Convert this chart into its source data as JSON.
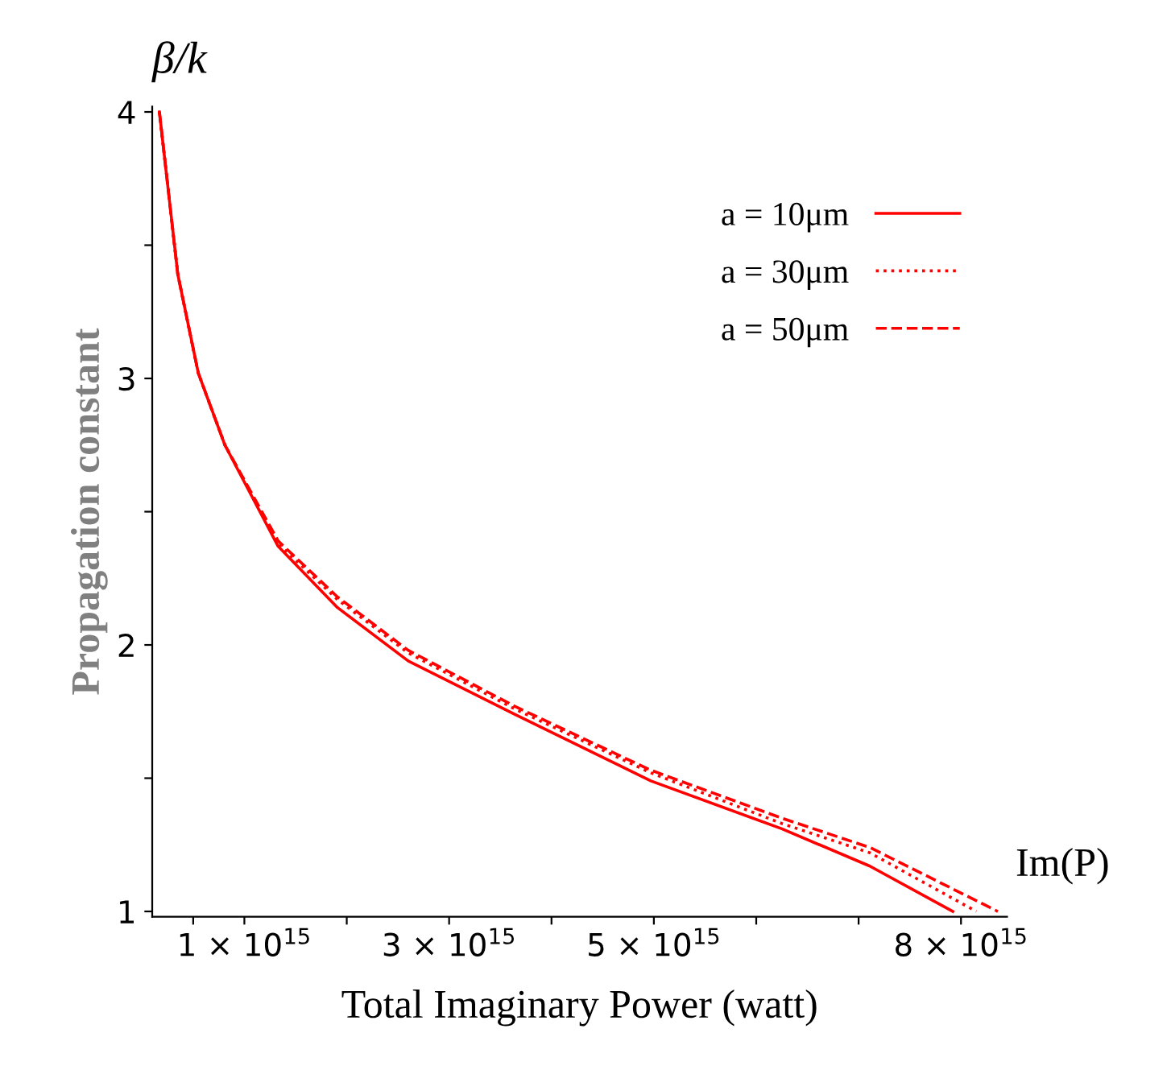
{
  "chart_data": {
    "type": "line",
    "xlabel": "Total Imaginary Power (watt)",
    "ylabel": "Propagation constant",
    "annotations": [
      "β/k",
      "Im(P)"
    ],
    "xlim": [
      100000000000000.0,
      8450000000000000.0
    ],
    "ylim": [
      0.98,
      4.02
    ],
    "xticks": [
      {
        "value": 500000000000000.0,
        "label": null
      },
      {
        "value": 1000000000000000.0,
        "label": "1 × 10$^{15}$"
      },
      {
        "value": 2000000000000000.0,
        "label": null
      },
      {
        "value": 3000000000000000.0,
        "label": "3 × 10$^{15}$"
      },
      {
        "value": 4000000000000000.0,
        "label": null
      },
      {
        "value": 5000000000000000.0,
        "label": "5 × 10$^{15}$"
      },
      {
        "value": 6000000000000000.0,
        "label": null
      },
      {
        "value": 7000000000000000.0,
        "label": null
      },
      {
        "value": 8000000000000000.0,
        "label": "8 × 10$^{15}$"
      }
    ],
    "yticks": [
      1,
      {
        "value": 1.5,
        "label": null
      },
      2,
      {
        "value": 2.5,
        "label": null
      },
      3,
      {
        "value": 3.5,
        "label": null
      },
      4
    ],
    "grid": false,
    "legend": "top right",
    "marker": "none",
    "series": [
      {
        "name": "a = 10μm",
        "color": "#ff0000",
        "line_style": "solid",
        "x": [
          170000000000000.0,
          350000000000000.0,
          550000000000000.0,
          810000000000000.0,
          1330000000000000.0,
          1910000000000000.0,
          2600000000000000.0,
          3640000000000000.0,
          4970000000000000.0,
          6250000000000000.0,
          7110000000000000.0,
          7920000000000000.0
        ],
        "values": [
          4.0,
          3.39,
          3.02,
          2.75,
          2.37,
          2.14,
          1.94,
          1.74,
          1.49,
          1.31,
          1.17,
          1.0
        ]
      },
      {
        "name": "a = 30μm",
        "color": "#ff0000",
        "line_style": "dotted",
        "x": [
          170000000000000.0,
          350000000000000.0,
          550000000000000.0,
          810000000000000.0,
          1330000000000000.0,
          1910000000000000.0,
          2600000000000000.0,
          3640000000000000.0,
          4970000000000000.0,
          6250000000000000.0,
          7110000000000000.0,
          8150000000000000.0
        ],
        "values": [
          4.0,
          3.39,
          3.02,
          2.75,
          2.38,
          2.17,
          1.97,
          1.76,
          1.52,
          1.33,
          1.22,
          1.0
        ]
      },
      {
        "name": "a = 50μm",
        "color": "#ff0000",
        "line_style": "dashed",
        "x": [
          170000000000000.0,
          350000000000000.0,
          550000000000000.0,
          810000000000000.0,
          1330000000000000.0,
          1910000000000000.0,
          2600000000000000.0,
          3640000000000000.0,
          4970000000000000.0,
          6250000000000000.0,
          7110000000000000.0,
          8360000000000000.0
        ],
        "values": [
          4.0,
          3.39,
          3.02,
          2.75,
          2.39,
          2.18,
          1.98,
          1.77,
          1.53,
          1.35,
          1.24,
          1.0
        ]
      }
    ]
  }
}
